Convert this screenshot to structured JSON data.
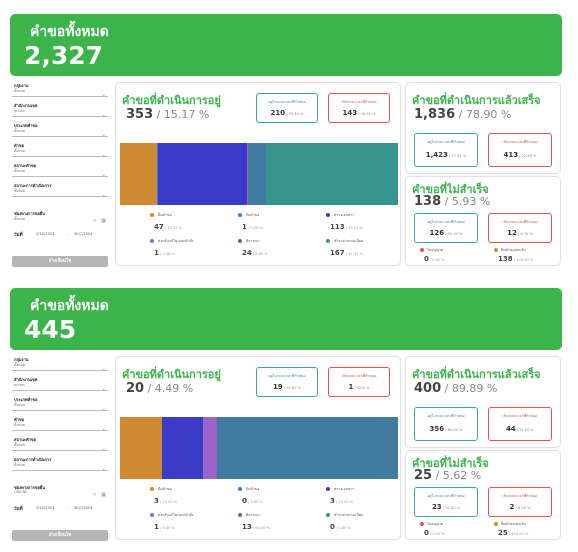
{
  "colors": {
    "green": "#3bb54a",
    "teal": "#3fa0b8",
    "red": "#e2534a",
    "seg": [
      "#d08a34",
      "#2f87d6",
      "#3b3bc8",
      "#9c63c8",
      "#427ba0",
      "#38948f"
    ]
  },
  "filters": {
    "labels": [
      "กลุ่มงาน",
      "สำนักงานเขต",
      "ประเภทคำขอ",
      "คำขอ",
      "สถานะคำขอ",
      "สถานะการดำเนินการ"
    ],
    "values": [
      "ทั้งหมด",
      "ทุกเขต",
      "ทั้งหมด",
      "ทั้งหมด",
      "ทั้งหมด",
      "ทั้งหมด"
    ],
    "channel_label": "ช่องทางการขอยื่น",
    "date_label": "วันที่",
    "date_from": "2/10/2023",
    "date_sep": "-",
    "date_to": "30/7/2024",
    "button": "ล้างเงื่อนไข",
    "clear_icon": "clear-filter-icon",
    "calendar_icon": "calendar-icon"
  },
  "dashboards": [
    {
      "total_title": "คำขอทั้งหมด",
      "total": "2,327",
      "channel": "ทั้งหมด",
      "progress": {
        "title": "คำขอที่ดำเนินการอยู่",
        "count": "353",
        "pct": "15.17 %",
        "ok_label": "อยู่ในระยะเวลาที่กำหนด",
        "ok_value": "210",
        "ok_pct": "59.49 %",
        "late_label": "เกินระยะเวลาที่กำหนด",
        "late_value": "143",
        "late_pct": "40.51 %",
        "bar": [
          47,
          1,
          113,
          1,
          24,
          167
        ],
        "legend": [
          {
            "name": "ยื่นคำขอ",
            "value": "47",
            "pct": "13.31 %",
            "color": "#d08a34"
          },
          {
            "name": "รับคำขอ",
            "value": "1",
            "pct": "0.28 %",
            "color": "#2f87d6"
          },
          {
            "name": "ตรวจเอกสาร",
            "value": "113",
            "pct": "32.01 %",
            "color": "#3b3bc8"
          },
          {
            "name": "ส่งกลับแก้ไข/ออกคำสั่ง",
            "value": "1",
            "pct": "0.28 %",
            "color": "#9c63c8"
          },
          {
            "name": "พิจารณา",
            "value": "24",
            "pct": "6.80 %",
            "color": "#427ba0"
          },
          {
            "name": "ชำระค่าธรรมเนียม",
            "value": "167",
            "pct": "47.31 %",
            "color": "#38948f"
          }
        ]
      },
      "done": {
        "title": "คำขอที่ดำเนินการแล้วเสร็จ",
        "count": "1,836",
        "pct": "78.90 %",
        "ok_label": "อยู่ในระยะเวลาที่กำหนด",
        "ok_value": "1,423",
        "ok_pct": "77.51 %",
        "late_label": "เกินระยะเวลาที่กำหนด",
        "late_value": "413",
        "late_pct": "22.49 %"
      },
      "failed": {
        "title": "คำขอที่ไม่สำเร็จ",
        "count": "138",
        "pct": "5.93 %",
        "ok_label": "อยู่ในระยะเวลาที่กำหนด",
        "ok_value": "126",
        "ok_pct": "91.30 %",
        "late_label": "เกินระยะเวลาที่กำหนด",
        "late_value": "12",
        "late_pct": "8.70 %",
        "a_name": "ไม่อนุญาต",
        "a_value": "0",
        "a_pct": "0.00 %",
        "b_name": "ยื่นคำขอ/ยกเลิก",
        "b_value": "138",
        "b_pct": "100.00 %"
      }
    },
    {
      "total_title": "คำขอทั้งหมด",
      "total": "445",
      "channel": "ONLINE",
      "progress": {
        "title": "คำขอที่ดำเนินการอยู่",
        "count": "20",
        "pct": "4.49 %",
        "ok_label": "อยู่ในระยะเวลาที่กำหนด",
        "ok_value": "19",
        "ok_pct": "95.00 %",
        "late_label": "เกินระยะเวลาที่กำหนด",
        "late_value": "1",
        "late_pct": "5.00 %",
        "bar": [
          3,
          0,
          3,
          1,
          13,
          0
        ],
        "legend": [
          {
            "name": "ยื่นคำขอ",
            "value": "3",
            "pct": "15.00 %",
            "color": "#d08a34"
          },
          {
            "name": "รับคำขอ",
            "value": "0",
            "pct": "0.00 %",
            "color": "#2f87d6"
          },
          {
            "name": "ตรวจเอกสาร",
            "value": "3",
            "pct": "15.00 %",
            "color": "#3b3bc8"
          },
          {
            "name": "ส่งกลับแก้ไข/ออกคำสั่ง",
            "value": "1",
            "pct": "5.00 %",
            "color": "#9c63c8"
          },
          {
            "name": "พิจารณา",
            "value": "13",
            "pct": "65.00 %",
            "color": "#427ba0"
          },
          {
            "name": "ชำระค่าธรรมเนียม",
            "value": "0",
            "pct": "0.00 %",
            "color": "#38948f"
          }
        ]
      },
      "done": {
        "title": "คำขอที่ดำเนินการแล้วเสร็จ",
        "count": "400",
        "pct": "89.89 %",
        "ok_label": "อยู่ในระยะเวลาที่กำหนด",
        "ok_value": "356",
        "ok_pct": "89.00 %",
        "late_label": "เกินระยะเวลาที่กำหนด",
        "late_value": "44",
        "late_pct": "11.00 %"
      },
      "failed": {
        "title": "คำขอที่ไม่สำเร็จ",
        "count": "25",
        "pct": "5.62 %",
        "ok_label": "อยู่ในระยะเวลาที่กำหนด",
        "ok_value": "23",
        "ok_pct": "92.00 %",
        "late_label": "เกินระยะเวลาที่กำหนด",
        "late_value": "2",
        "late_pct": "8.00 %",
        "a_name": "ไม่อนุญาต",
        "a_value": "0",
        "a_pct": "0.00 %",
        "b_name": "ยื่นคำขอ/ยกเลิก",
        "b_value": "25",
        "b_pct": "100.00 %"
      }
    }
  ]
}
